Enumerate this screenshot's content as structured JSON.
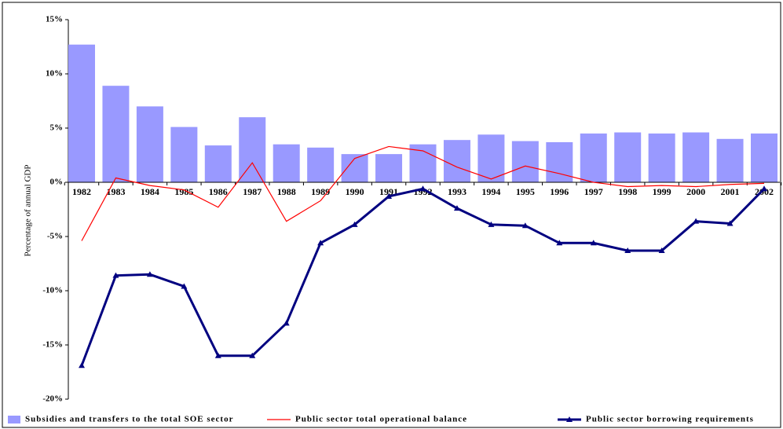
{
  "chart_data": {
    "type": "bar",
    "y_label": "Percentage of annual GDP",
    "categories": [
      "1982",
      "1983",
      "1984",
      "1985",
      "1986",
      "1987",
      "1988",
      "1989",
      "1990",
      "1991",
      "1992",
      "1993",
      "1994",
      "1995",
      "1996",
      "1997",
      "1998",
      "1999",
      "2000",
      "2001",
      "2002"
    ],
    "series": [
      {
        "name": "Subsidies and transfers to the total SOE sector",
        "type": "bar",
        "color": "#9999ff",
        "values": [
          12.7,
          8.9,
          7.0,
          5.1,
          3.4,
          6.0,
          3.5,
          3.2,
          2.6,
          2.6,
          3.5,
          3.9,
          4.4,
          3.8,
          3.7,
          4.5,
          4.6,
          4.5,
          4.6,
          4.0,
          4.5
        ]
      },
      {
        "name": "Public sector total operational balance",
        "type": "line",
        "color": "#ff0000",
        "values": [
          -5.4,
          0.4,
          -0.3,
          -0.7,
          -2.3,
          1.8,
          -3.6,
          -1.7,
          2.2,
          3.3,
          2.9,
          1.4,
          0.3,
          1.5,
          0.8,
          0.0,
          -0.4,
          -0.3,
          -0.4,
          -0.2,
          -0.1
        ]
      },
      {
        "name": "Public sector borrowing requirements",
        "type": "line",
        "marker": "triangle",
        "color": "#000080",
        "values": [
          -16.9,
          -8.6,
          -8.5,
          -9.6,
          -16.0,
          -16.0,
          -13.0,
          -5.6,
          -3.9,
          -1.3,
          -0.6,
          -2.4,
          -3.9,
          -4.0,
          -5.6,
          -5.6,
          -6.3,
          -6.3,
          -3.6,
          -3.8,
          -0.6
        ]
      }
    ],
    "ylim": [
      -20,
      15
    ],
    "yticks": [
      {
        "value": -20,
        "label": "-20%"
      },
      {
        "value": -15,
        "label": "-15%"
      },
      {
        "value": -10,
        "label": "-10%"
      },
      {
        "value": -5,
        "label": "-5%"
      },
      {
        "value": 0,
        "label": "0%"
      },
      {
        "value": 5,
        "label": "5%"
      },
      {
        "value": 10,
        "label": "10%"
      },
      {
        "value": 15,
        "label": "15%"
      }
    ],
    "legend": "bottom"
  }
}
